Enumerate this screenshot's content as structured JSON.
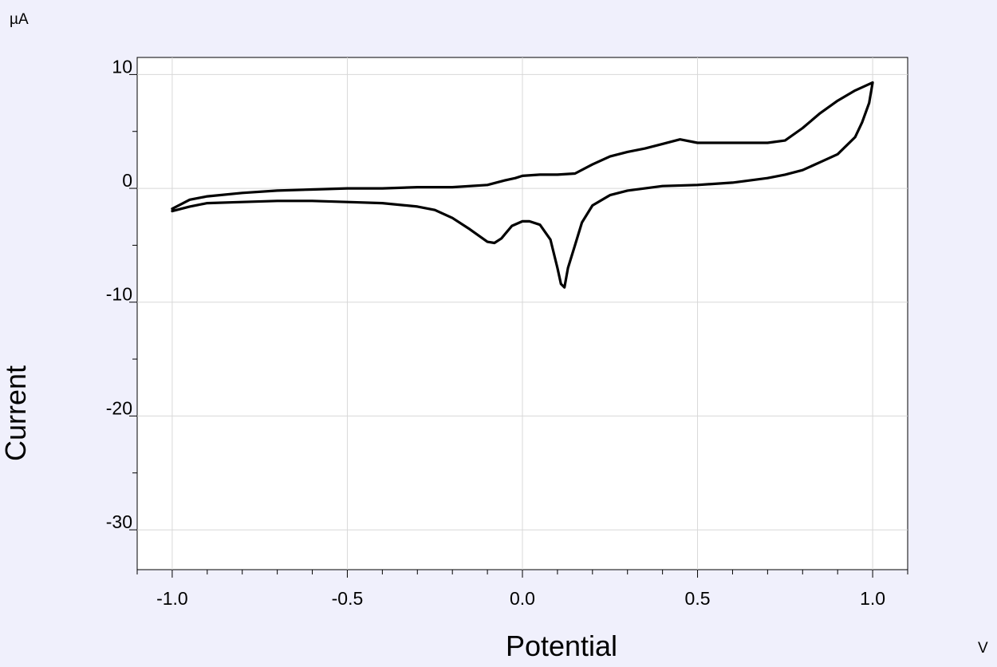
{
  "chart_data": {
    "type": "line",
    "title": "",
    "xlabel": "Potential",
    "ylabel": "Current",
    "x_unit": "V",
    "y_unit": "µA",
    "xlim": [
      -1.1,
      1.1
    ],
    "ylim": [
      -33.5,
      11.5
    ],
    "grid": true,
    "legend": "none",
    "x_ticks": [
      -1.0,
      -0.5,
      0.0,
      0.5,
      1.0
    ],
    "x_tick_labels": [
      "-1.0",
      "-0.5",
      "0.0",
      "0.5",
      "1.0"
    ],
    "y_ticks": [
      10,
      0,
      -10,
      -20,
      -30
    ],
    "y_tick_labels": [
      "10",
      "0",
      "-10",
      "-20",
      "-30"
    ],
    "colors": {
      "background": "#f0f0fc",
      "plot": "#ffffff",
      "line": "#000000",
      "grid": "#d8d8d8"
    },
    "series": [
      {
        "x": [
          -1.0,
          -0.95,
          -0.9,
          -0.8,
          -0.7,
          -0.6,
          -0.5,
          -0.4,
          -0.3,
          -0.2,
          -0.1,
          -0.05,
          -0.02,
          0.0,
          0.05,
          0.1,
          0.15,
          0.2,
          0.25,
          0.3,
          0.35,
          0.4,
          0.45,
          0.5,
          0.55,
          0.6,
          0.7,
          0.75,
          0.8,
          0.85,
          0.9,
          0.95,
          1.0,
          0.99,
          0.97,
          0.95,
          0.9,
          0.85,
          0.8,
          0.75,
          0.7,
          0.6,
          0.5,
          0.4,
          0.3,
          0.25,
          0.2,
          0.17,
          0.15,
          0.13,
          0.12,
          0.11,
          0.1,
          0.08,
          0.05,
          0.02,
          0.0,
          -0.03,
          -0.06,
          -0.08,
          -0.1,
          -0.15,
          -0.2,
          -0.25,
          -0.3,
          -0.4,
          -0.5,
          -0.6,
          -0.7,
          -0.8,
          -0.9,
          -0.95,
          -1.0
        ],
        "y": [
          -1.8,
          -1.0,
          -0.7,
          -0.4,
          -0.2,
          -0.1,
          0.0,
          0.0,
          0.1,
          0.1,
          0.3,
          0.7,
          0.9,
          1.1,
          1.2,
          1.2,
          1.3,
          2.1,
          2.8,
          3.2,
          3.5,
          3.9,
          4.3,
          4.0,
          4.0,
          4.0,
          4.0,
          4.2,
          5.3,
          6.6,
          7.7,
          8.6,
          9.3,
          7.5,
          5.8,
          4.5,
          3.0,
          2.3,
          1.6,
          1.2,
          0.9,
          0.5,
          0.3,
          0.2,
          -0.2,
          -0.6,
          -1.5,
          -3.0,
          -5.0,
          -7.0,
          -8.7,
          -8.4,
          -7.0,
          -4.5,
          -3.2,
          -2.9,
          -2.9,
          -3.3,
          -4.4,
          -4.8,
          -4.7,
          -3.6,
          -2.6,
          -1.9,
          -1.6,
          -1.3,
          -1.2,
          -1.1,
          -1.1,
          -1.2,
          -1.3,
          -1.6,
          -2.0
        ]
      }
    ]
  }
}
